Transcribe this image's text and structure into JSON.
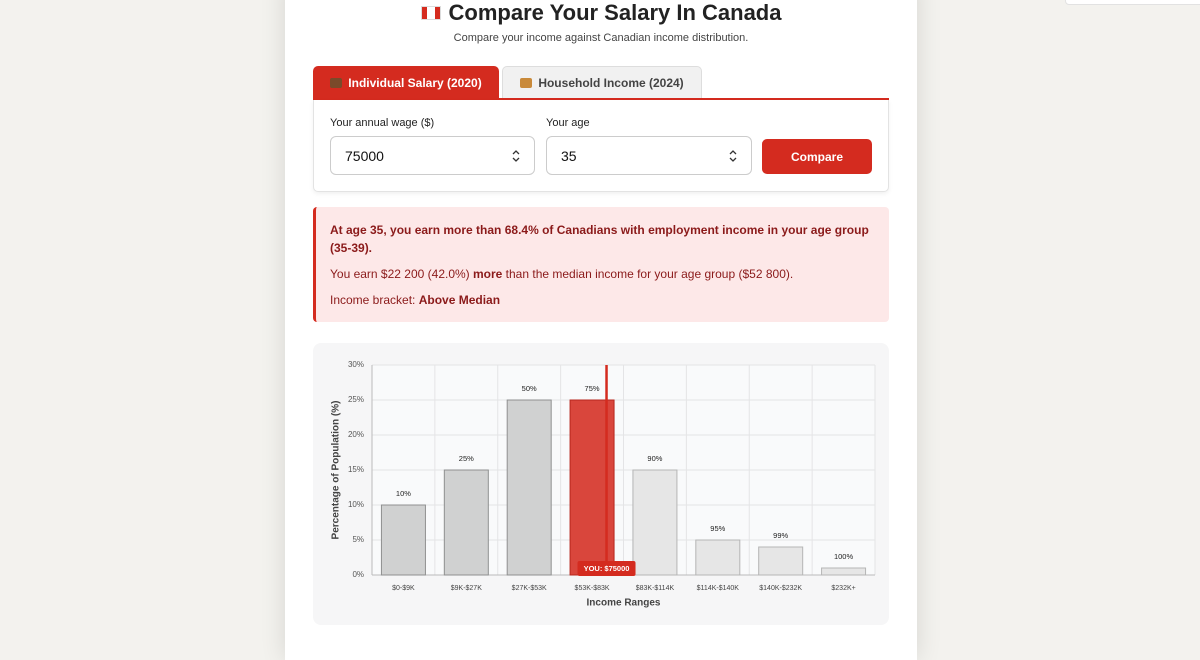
{
  "header": {
    "title": "Compare Your Salary In Canada",
    "subtitle": "Compare your income against Canadian income distribution."
  },
  "tabs": [
    {
      "label": "Individual Salary (2020)",
      "active": true
    },
    {
      "label": "Household Income (2024)",
      "active": false
    }
  ],
  "form": {
    "fields": [
      {
        "label": "Your annual wage ($)",
        "value": "75000"
      },
      {
        "label": "Your age",
        "value": "35"
      }
    ],
    "button": "Compare"
  },
  "result": {
    "headline": "At age 35, you earn more than 68.4% of Canadians with employment income in your age group (35-39).",
    "comparison": [
      "You earn $22 200 (42.0%) ",
      "more",
      " than the median income for your age group ($52 800)."
    ],
    "bracket": [
      "Income bracket: ",
      "Above Median"
    ]
  },
  "chart_data": {
    "type": "bar",
    "categories": [
      "$0-$9K",
      "$9K-$27K",
      "$27K-$53K",
      "$53K-$83K",
      "$83K-$114K",
      "$114K-$140K",
      "$140K-$232K",
      "$232K+"
    ],
    "values": [
      10,
      15,
      25,
      25,
      15,
      5,
      4,
      1
    ],
    "annotations": [
      "10%",
      "25%",
      "50%",
      "75%",
      "90%",
      "95%",
      "99%",
      "100%"
    ],
    "colors": [
      "#d0d1d1",
      "#d0d1d1",
      "#d0d1d1",
      "#d9463c",
      "#e6e6e6",
      "#e6e6e6",
      "#e6e6e6",
      "#e6e6e6"
    ],
    "marker": {
      "label": "YOU: $75000",
      "category_index": 3
    },
    "ylim": [
      0,
      30
    ],
    "yticks": [
      {
        "value": 0,
        "label": "0%"
      },
      {
        "value": 5,
        "label": "5%"
      },
      {
        "value": 10,
        "label": "10%"
      },
      {
        "value": 15,
        "label": "15%"
      },
      {
        "value": 20,
        "label": "20%"
      },
      {
        "value": 25,
        "label": "25%"
      },
      {
        "value": 30,
        "label": "30%"
      }
    ],
    "y_label": "Percentage of Population (%)",
    "x_label": "Income Ranges",
    "grid": true
  }
}
